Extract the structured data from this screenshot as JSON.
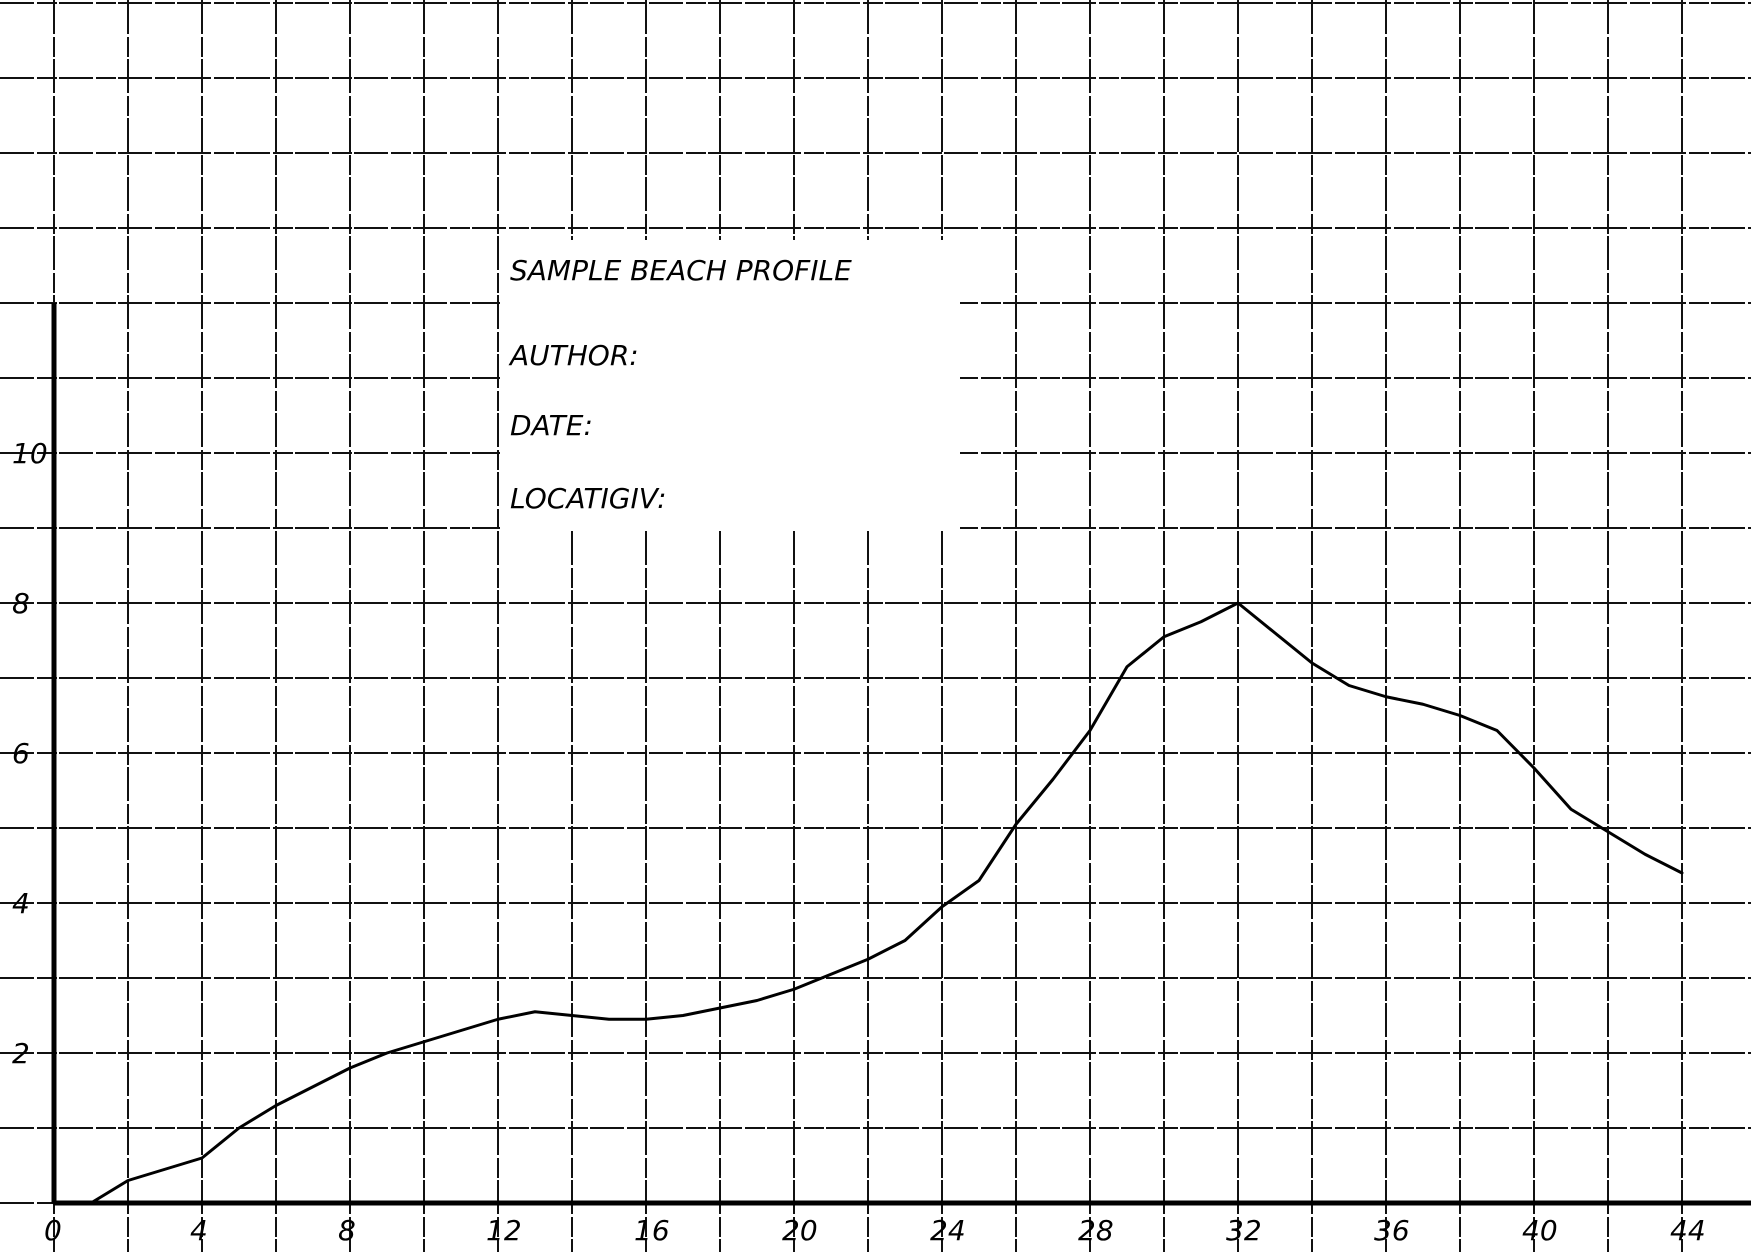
{
  "chart_data": {
    "type": "line",
    "title": "SAMPLE BEACH PROFILE",
    "subtitle": "",
    "xlabel": "",
    "ylabel": "",
    "xlim": [
      0,
      44
    ],
    "ylim": [
      0,
      12
    ],
    "grid": true,
    "legend": "none",
    "x_ticks": [
      0,
      4,
      8,
      12,
      16,
      20,
      24,
      28,
      32,
      36,
      40,
      44
    ],
    "y_ticks": [
      2,
      4,
      6,
      8,
      10
    ],
    "x_tick_labels": [
      "0",
      "4",
      "8",
      "12",
      "16",
      "20",
      "24",
      "28",
      "32",
      "36",
      "40",
      "44"
    ],
    "y_tick_labels": [
      "2",
      "4",
      "6",
      "8",
      "10"
    ],
    "series": [
      {
        "x": [
          0,
          1,
          2,
          3,
          4,
          5,
          6,
          7,
          8,
          9,
          10,
          11,
          12,
          13,
          14,
          15,
          16,
          17,
          18,
          19,
          20,
          21,
          22,
          23,
          24,
          25,
          26,
          27,
          28,
          29,
          30,
          31,
          32,
          33,
          34,
          35,
          36,
          37,
          38,
          39,
          40,
          41,
          42,
          43,
          44
        ],
        "y": [
          0,
          0,
          0.3,
          0.45,
          0.6,
          1.0,
          1.3,
          1.55,
          1.8,
          2.0,
          2.15,
          2.3,
          2.45,
          2.55,
          2.5,
          2.45,
          2.45,
          2.5,
          2.6,
          2.7,
          2.85,
          3.05,
          3.25,
          3.5,
          3.95,
          4.3,
          5.05,
          5.65,
          6.3,
          7.15,
          7.55,
          7.75,
          8.0,
          7.6,
          7.2,
          6.9,
          6.75,
          6.65,
          6.5,
          6.3,
          5.8,
          5.25,
          4.95,
          4.65,
          4.4
        ]
      }
    ],
    "header_notes": {
      "title": "SAMPLE BEACH PROFILE",
      "author": "AUTHOR:",
      "date": "DATE:",
      "location": "LOCATIGIV:"
    }
  }
}
